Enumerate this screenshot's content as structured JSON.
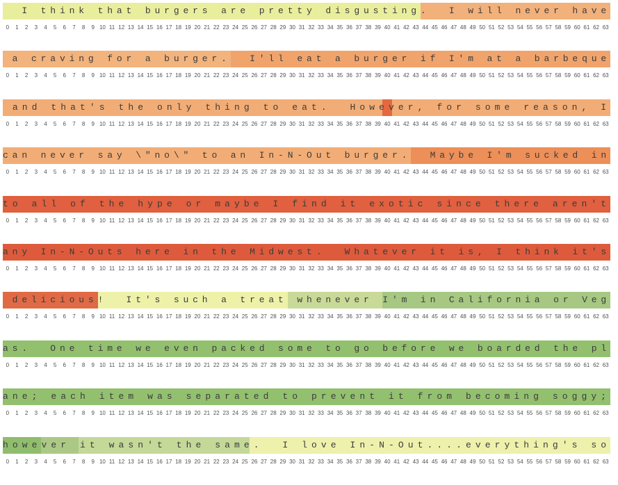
{
  "rows": [
    {
      "text": "  I think that burgers are pretty disgusting.  I will never have",
      "segments": [
        {
          "from": 0,
          "to": 44,
          "color": "#e9ee9c"
        },
        {
          "from": 44,
          "to": 64,
          "color": "#f2b07a"
        }
      ]
    },
    {
      "text": " a craving for a burger.  I'll eat a burger if I'm at a barbeque",
      "segments": [
        {
          "from": 0,
          "to": 24,
          "color": "#f2b37c"
        },
        {
          "from": 24,
          "to": 64,
          "color": "#f0a46c"
        }
      ]
    },
    {
      "text": " and that's the only thing to eat.  However, for some reason, I",
      "segments": [
        {
          "from": 0,
          "to": 40,
          "color": "#f2ad76"
        },
        {
          "from": 40,
          "to": 41,
          "color": "#e5683f"
        },
        {
          "from": 41,
          "to": 64,
          "color": "#f2ad76"
        }
      ]
    },
    {
      "text": "can never say \\\"no\\\" to an In-N-Out burger.  Maybe I'm sucked in",
      "segments": [
        {
          "from": 0,
          "to": 43,
          "color": "#f2ad76"
        },
        {
          "from": 43,
          "to": 64,
          "color": "#ed8f58"
        }
      ]
    },
    {
      "text": "to all of the hype or maybe I find it exotic since there aren't",
      "segments": [
        {
          "from": 0,
          "to": 64,
          "color": "#e0603f"
        }
      ]
    },
    {
      "text": "any In-N-Outs here in the Midwest.  Whatever it is, I think it's",
      "segments": [
        {
          "from": 0,
          "to": 64,
          "color": "#dd5b3c"
        }
      ]
    },
    {
      "text": " delicious!  It's such a treat whenever I'm in California or Veg",
      "segments": [
        {
          "from": 0,
          "to": 10,
          "color": "#e06a45"
        },
        {
          "from": 10,
          "to": 30,
          "color": "#eef2a8"
        },
        {
          "from": 30,
          "to": 40,
          "color": "#c9d997"
        },
        {
          "from": 40,
          "to": 64,
          "color": "#a6c882"
        }
      ]
    },
    {
      "text": "as.  One time we even packed some to go before we boarded the pl",
      "segments": [
        {
          "from": 0,
          "to": 64,
          "color": "#93c06e"
        }
      ]
    },
    {
      "text": "ane; each item was separated to prevent it from becoming soggy;",
      "segments": [
        {
          "from": 0,
          "to": 64,
          "color": "#93c06e"
        }
      ]
    },
    {
      "text": "however it wasn't the same.  I love In-N-Out....everything's so",
      "segments": [
        {
          "from": 0,
          "to": 4,
          "color": "#90bd6d"
        },
        {
          "from": 4,
          "to": 8,
          "color": "#abc985"
        },
        {
          "from": 8,
          "to": 26,
          "color": "#c4d898"
        },
        {
          "from": 26,
          "to": 64,
          "color": "#eef1ac"
        }
      ]
    }
  ],
  "ticks": [
    "0",
    "1",
    "2",
    "3",
    "4",
    "5",
    "6",
    "7",
    "8",
    "9",
    "10",
    "11",
    "12",
    "13",
    "14",
    "15",
    "16",
    "17",
    "18",
    "19",
    "20",
    "21",
    "22",
    "23",
    "24",
    "25",
    "26",
    "27",
    "28",
    "29",
    "30",
    "31",
    "32",
    "33",
    "34",
    "35",
    "36",
    "37",
    "38",
    "39",
    "40",
    "41",
    "42",
    "43",
    "44",
    "45",
    "46",
    "47",
    "48",
    "49",
    "50",
    "51",
    "52",
    "53",
    "54",
    "55",
    "56",
    "57",
    "58",
    "59",
    "60",
    "61",
    "62",
    "63"
  ]
}
